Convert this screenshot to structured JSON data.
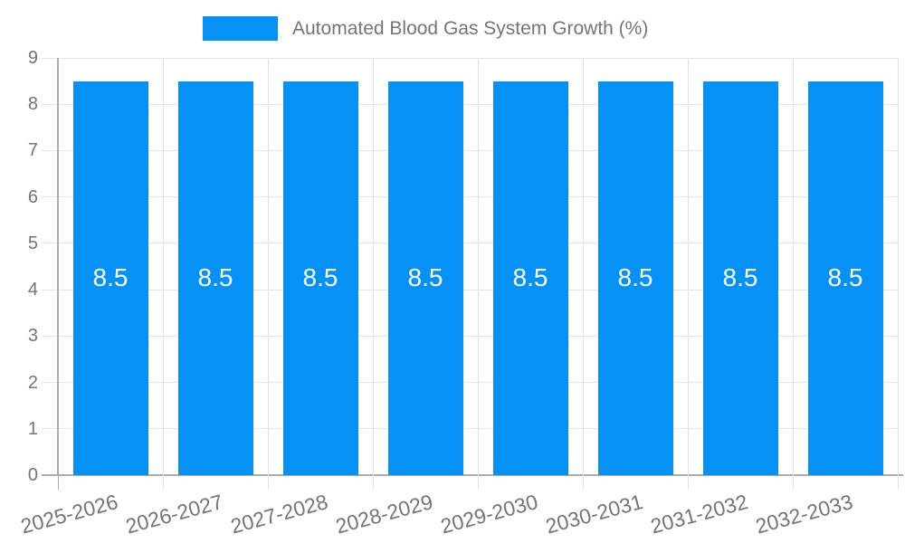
{
  "legend": {
    "label": "Automated Blood Gas System Growth (%)"
  },
  "chart_data": {
    "type": "bar",
    "title": "Automated Blood Gas System Growth (%)",
    "categories": [
      "2025-2026",
      "2026-2027",
      "2027-2028",
      "2028-2029",
      "2029-2030",
      "2030-2031",
      "2031-2032",
      "2032-2033"
    ],
    "series": [
      {
        "name": "Automated Blood Gas System Growth (%)",
        "values": [
          8.5,
          8.5,
          8.5,
          8.5,
          8.5,
          8.5,
          8.5,
          8.5
        ]
      }
    ],
    "data_labels": [
      "8.5",
      "8.5",
      "8.5",
      "8.5",
      "8.5",
      "8.5",
      "8.5",
      "8.5"
    ],
    "xlabel": "",
    "ylabel": "",
    "ylim": [
      0,
      9
    ],
    "yticks": [
      0,
      1,
      2,
      3,
      4,
      5,
      6,
      7,
      8,
      9
    ],
    "grid": true,
    "legend_position": "top-center",
    "colors": {
      "bar": "#0591f5",
      "axis_text": "#757575",
      "data_label_text": "#ffffff",
      "gridline": "#e4e4e4",
      "axis_line": "#ababab",
      "background": "#ffffff"
    }
  }
}
